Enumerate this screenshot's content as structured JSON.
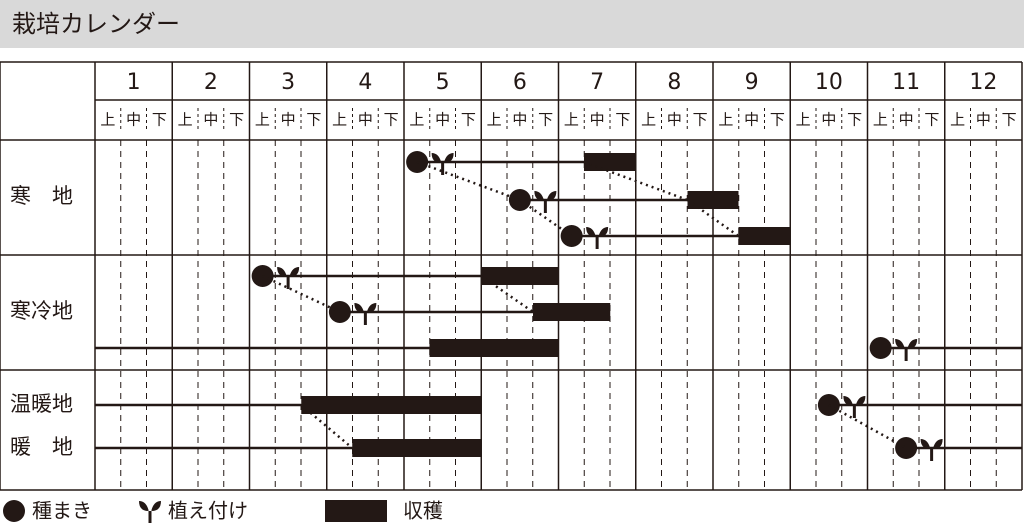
{
  "title": "栽培カレンダー",
  "months": [
    "1",
    "2",
    "3",
    "4",
    "5",
    "6",
    "7",
    "8",
    "9",
    "10",
    "11",
    "12"
  ],
  "thirds": [
    "上",
    "中",
    "下"
  ],
  "sections": [
    {
      "label": "寒　地",
      "rows": [
        {
          "sow": 5.17,
          "plant": 5.5,
          "harvest": [
            7.33,
            8
          ]
        },
        {
          "sow": 6.5,
          "plant": 6.83,
          "harvest": [
            8.67,
            9.33
          ],
          "link_sow": true,
          "link_harvest": true
        },
        {
          "sow": 7.17,
          "plant": 7.5,
          "harvest": [
            9.33,
            10
          ],
          "link_sow": true,
          "link_harvest": true
        }
      ]
    },
    {
      "label": "寒冷地",
      "rows": [
        {
          "sow": 3.17,
          "plant": 3.5,
          "harvest": [
            6,
            7
          ]
        },
        {
          "sow": 4.17,
          "plant": 4.5,
          "harvest": [
            6.67,
            7.67
          ],
          "link_sow": true,
          "link_harvest": true
        },
        {
          "sow": 11.17,
          "plant": 11.5,
          "harvest": [
            5.33,
            7
          ]
        }
      ]
    },
    {
      "rows": [
        {
          "label": "温暖地",
          "sow": 10.5,
          "plant": 10.83,
          "harvest": [
            3.67,
            6
          ]
        },
        {
          "label": "暖　地",
          "sow": 11.5,
          "plant": 11.83,
          "harvest": [
            4.33,
            6
          ],
          "link_sow": true,
          "link_harvest": true
        }
      ]
    }
  ],
  "legend": {
    "sow": "種まき",
    "plant": "植え付け",
    "harvest": "収穫"
  }
}
